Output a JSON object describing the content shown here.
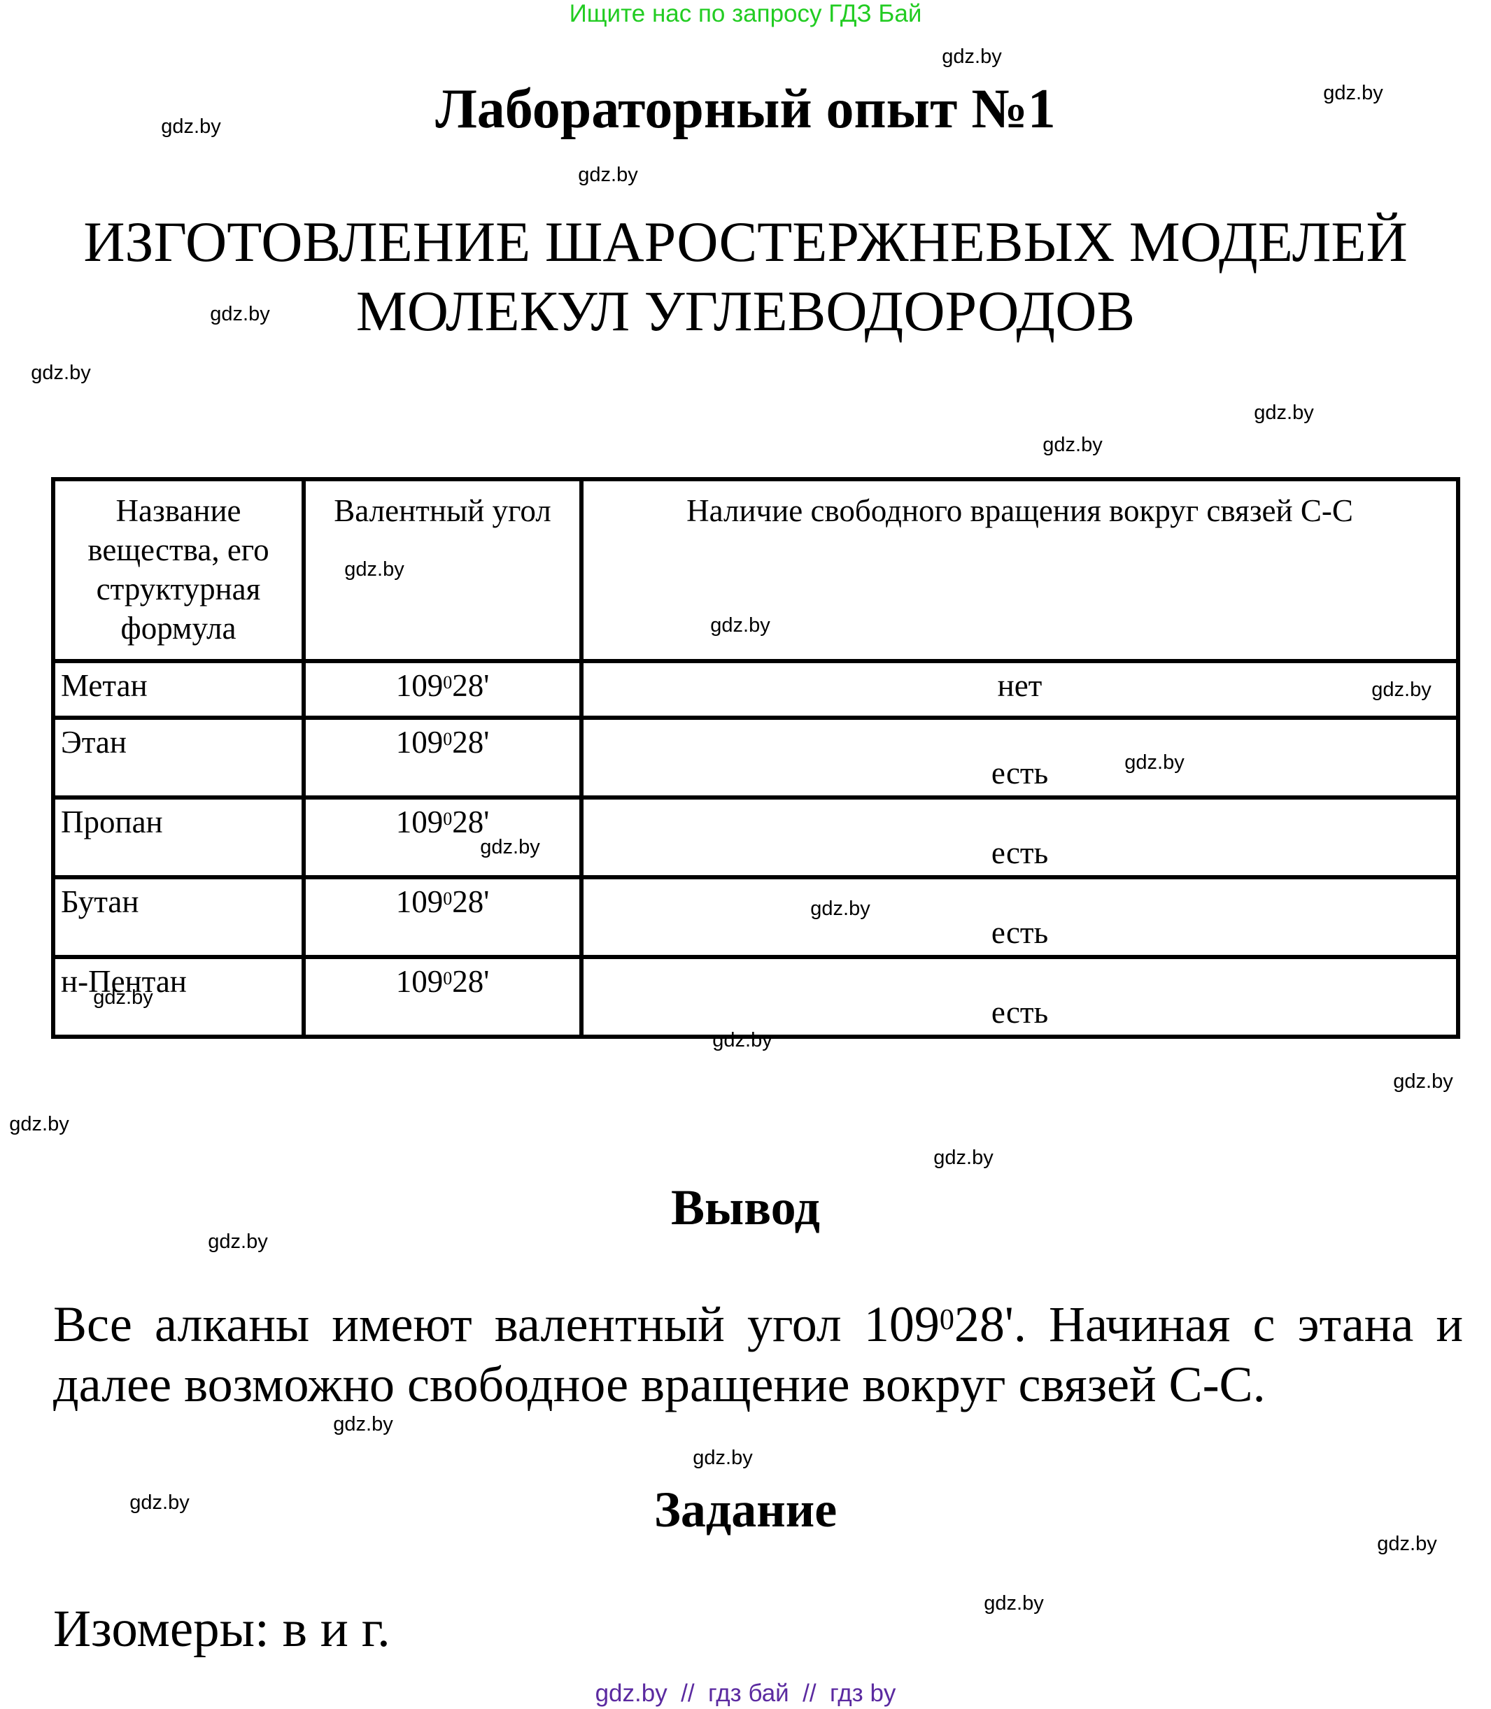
{
  "banner": "Ищите нас по запросу ГДЗ Бай",
  "title": "Лабораторный опыт №1",
  "heading": [
    "ИЗГОТОВЛЕНИЕ ШАРОСТЕРЖНЕВЫХ МОДЕЛЕЙ",
    "МОЛЕКУЛ УГЛЕВОДОРОДОВ"
  ],
  "table": {
    "headers": [
      "Название вещества, его структурная формула",
      "Валентный угол",
      "Наличие свободного вращения вокруг связей С-С"
    ],
    "rows": [
      {
        "name": "Метан",
        "angle_deg": "109",
        "angle_sup": "0",
        "angle_min": "28'",
        "rotation": "нет"
      },
      {
        "name": "Этан",
        "angle_deg": "109",
        "angle_sup": "0",
        "angle_min": "28'",
        "rotation": "есть"
      },
      {
        "name": "Пропан",
        "angle_deg": "109",
        "angle_sup": "0",
        "angle_min": "28'",
        "rotation": "есть"
      },
      {
        "name": "Бутан",
        "angle_deg": "109",
        "angle_sup": "0",
        "angle_min": "28'",
        "rotation": "есть"
      },
      {
        "name": "н-Пентан",
        "angle_deg": "109",
        "angle_sup": "0",
        "angle_min": "28'",
        "rotation": "есть"
      }
    ]
  },
  "conclusion": {
    "title": "Вывод",
    "text_before": "Все алканы имеют валентный угол 109",
    "text_sup": "0",
    "text_after": "28'. Начиная с этана и далее возможно свободное вращение вокруг связей С-С."
  },
  "task": {
    "title": "Задание",
    "answer": "Изомеры: в и г."
  },
  "watermark": "gdz.by",
  "footer": "gdz.by  //  гдз бай  //  гдз by",
  "colors": {
    "banner": "#22cc22",
    "footer": "#5b2aa0",
    "text": "#000000"
  }
}
